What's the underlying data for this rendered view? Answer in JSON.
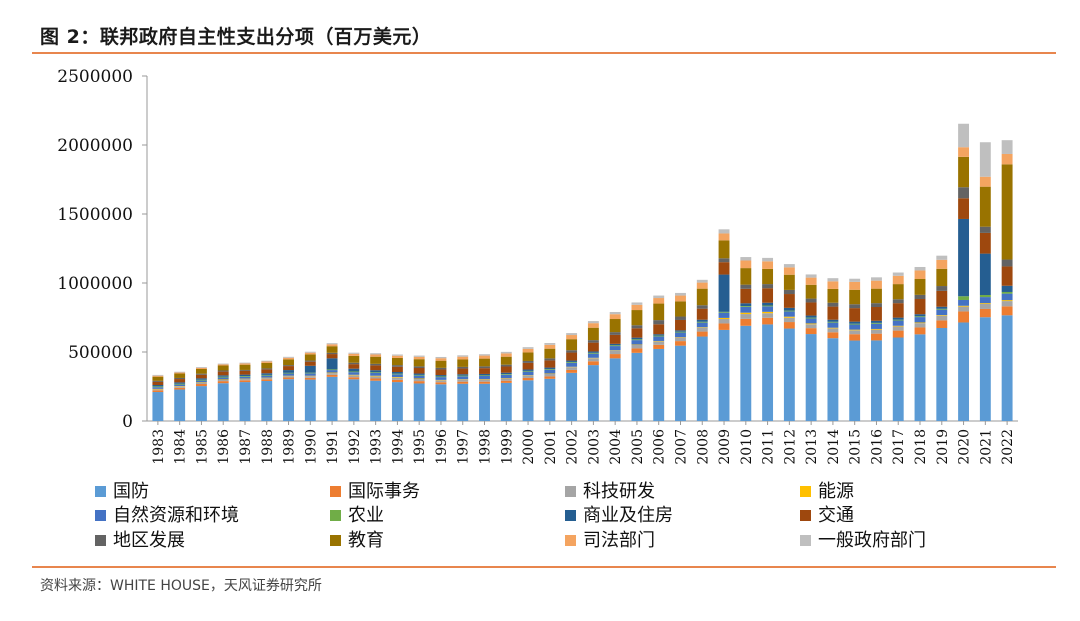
{
  "header": {
    "title": "图 2：联邦政府自主性支出分项（百万美元）"
  },
  "footer": {
    "source": "资料来源：WHITE HOUSE，天风证券研究所"
  },
  "colors": {
    "accent_rule": "#e8864e",
    "series": [
      "#5b9bd5",
      "#ed7d31",
      "#a5a5a5",
      "#ffc000",
      "#4472c4",
      "#70ad47",
      "#255e91",
      "#9e480e",
      "#636363",
      "#997300",
      "#f4a460",
      "#bfbfbf"
    ]
  },
  "chart_data": {
    "type": "bar",
    "stacked": true,
    "title": "联邦政府自主性支出分项（百万美元）",
    "xlabel": "",
    "ylabel": "",
    "ylim": [
      0,
      2500000
    ],
    "yticks": [
      "0",
      "500000",
      "1000000",
      "1500000",
      "2000000",
      "2500000"
    ],
    "ytick_values": [
      0,
      500000,
      1000000,
      1500000,
      2000000,
      2500000
    ],
    "categories": [
      "1983",
      "1984",
      "1985",
      "1986",
      "1987",
      "1988",
      "1989",
      "1990",
      "1991",
      "1992",
      "1993",
      "1994",
      "1995",
      "1996",
      "1997",
      "1998",
      "1999",
      "2000",
      "2001",
      "2002",
      "2003",
      "2004",
      "2005",
      "2006",
      "2007",
      "2008",
      "2009",
      "2010",
      "2011",
      "2012",
      "2013",
      "2014",
      "2015",
      "2016",
      "2017",
      "2018",
      "2019",
      "2020",
      "2021",
      "2022"
    ],
    "legend_position": "bottom",
    "series": [
      {
        "name": "国防",
        "values": [
          210000,
          228000,
          253000,
          274000,
          282000,
          290000,
          303000,
          300000,
          320000,
          302000,
          292000,
          282000,
          272000,
          266000,
          270000,
          270000,
          276000,
          295000,
          306000,
          349000,
          405000,
          454000,
          494000,
          522000,
          546000,
          612000,
          660000,
          690000,
          700000,
          670000,
          630000,
          600000,
          583000,
          584000,
          605000,
          628000,
          674000,
          714000,
          752000,
          766000
        ]
      },
      {
        "name": "国际事务",
        "values": [
          12000,
          13000,
          15000,
          15000,
          13000,
          12000,
          12000,
          13000,
          14000,
          15000,
          16000,
          16000,
          17000,
          15000,
          15000,
          15000,
          16000,
          17000,
          17000,
          21000,
          28000,
          31000,
          32000,
          30000,
          33000,
          36000,
          47000,
          50000,
          48000,
          47000,
          43000,
          43000,
          46000,
          49000,
          50000,
          50000,
          55000,
          80000,
          60000,
          65000
        ]
      },
      {
        "name": "科技研发",
        "values": [
          7000,
          7000,
          8000,
          8000,
          9000,
          9000,
          10000,
          12000,
          13000,
          14000,
          15000,
          15000,
          15000,
          14000,
          15000,
          16000,
          16000,
          17000,
          18000,
          20000,
          22000,
          24000,
          25000,
          25000,
          26000,
          27000,
          32000,
          35000,
          33000,
          31000,
          28000,
          28000,
          28000,
          29000,
          30000,
          31000,
          33000,
          35000,
          36000,
          38000
        ]
      },
      {
        "name": "能源",
        "values": [
          4000,
          4000,
          4000,
          4000,
          3000,
          3000,
          3000,
          3000,
          4000,
          4000,
          5000,
          5000,
          4000,
          3000,
          3000,
          3000,
          3000,
          3000,
          3000,
          3000,
          3000,
          3000,
          3000,
          3000,
          3000,
          4000,
          8000,
          10000,
          10000,
          8000,
          6000,
          5000,
          5000,
          5000,
          5000,
          5000,
          5000,
          6000,
          6000,
          7000
        ]
      },
      {
        "name": "自然资源和环境",
        "values": [
          12000,
          12000,
          13000,
          14000,
          14000,
          15000,
          16000,
          17000,
          18000,
          19000,
          20000,
          20000,
          21000,
          20000,
          21000,
          22000,
          24000,
          26000,
          28000,
          29000,
          30000,
          31000,
          32000,
          33000,
          33000,
          34000,
          38000,
          42000,
          40000,
          38000,
          36000,
          37000,
          37000,
          38000,
          38000,
          39000,
          40000,
          42000,
          44000,
          47000
        ]
      },
      {
        "name": "农业",
        "values": [
          6000,
          6000,
          6000,
          6000,
          5000,
          5000,
          5000,
          5000,
          5000,
          5000,
          5000,
          5000,
          5000,
          5000,
          5000,
          5000,
          5000,
          5000,
          5000,
          6000,
          6000,
          6000,
          6000,
          6000,
          6000,
          6000,
          6000,
          6000,
          6000,
          6000,
          6000,
          6000,
          6000,
          6000,
          6000,
          6000,
          6000,
          27000,
          15000,
          12000
        ]
      },
      {
        "name": "商业及住房",
        "values": [
          10000,
          10000,
          10000,
          10000,
          10000,
          12000,
          20000,
          50000,
          80000,
          20000,
          15000,
          12000,
          10000,
          10000,
          10000,
          10000,
          10000,
          10000,
          10000,
          10000,
          10000,
          10000,
          12000,
          10000,
          10000,
          15000,
          270000,
          20000,
          20000,
          20000,
          15000,
          15000,
          15000,
          15000,
          15000,
          15000,
          15000,
          560000,
          300000,
          45000
        ]
      },
      {
        "name": "交通",
        "values": [
          22000,
          24000,
          26000,
          27000,
          27000,
          28000,
          29000,
          30000,
          31000,
          33000,
          35000,
          38000,
          40000,
          40000,
          41000,
          42000,
          45000,
          48000,
          52000,
          58000,
          64000,
          65000,
          68000,
          72000,
          75000,
          80000,
          90000,
          105000,
          105000,
          100000,
          95000,
          95000,
          98000,
          100000,
          105000,
          110000,
          115000,
          150000,
          150000,
          140000
        ]
      },
      {
        "name": "地区发展",
        "values": [
          8000,
          8000,
          8000,
          8000,
          7000,
          7000,
          7000,
          8000,
          9000,
          10000,
          11000,
          12000,
          12000,
          12000,
          12000,
          13000,
          13000,
          14000,
          15000,
          17000,
          18000,
          20000,
          22000,
          30000,
          25000,
          25000,
          28000,
          30000,
          30000,
          30000,
          28000,
          28000,
          28000,
          28000,
          28000,
          30000,
          35000,
          80000,
          45000,
          50000
        ]
      },
      {
        "name": "教育",
        "values": [
          30000,
          32000,
          34000,
          36000,
          38000,
          40000,
          42000,
          45000,
          48000,
          50000,
          52000,
          52000,
          52000,
          52000,
          54000,
          56000,
          58000,
          62000,
          70000,
          80000,
          90000,
          95000,
          110000,
          120000,
          110000,
          120000,
          130000,
          120000,
          110000,
          110000,
          100000,
          100000,
          105000,
          105000,
          110000,
          115000,
          125000,
          220000,
          290000,
          690000
        ]
      },
      {
        "name": "司法部门",
        "values": [
          7000,
          7000,
          8000,
          8000,
          9000,
          10000,
          11000,
          12000,
          14000,
          15000,
          16000,
          16000,
          17000,
          18000,
          20000,
          22000,
          24000,
          26000,
          28000,
          30000,
          33000,
          35000,
          38000,
          40000,
          42000,
          44000,
          50000,
          55000,
          55000,
          53000,
          52000,
          55000,
          57000,
          58000,
          60000,
          62000,
          65000,
          70000,
          72000,
          75000
        ]
      },
      {
        "name": "一般政府部门",
        "values": [
          6000,
          6000,
          6000,
          6000,
          6000,
          6000,
          7000,
          7000,
          8000,
          8000,
          9000,
          9000,
          9000,
          9000,
          10000,
          10000,
          11000,
          12000,
          13000,
          14000,
          15000,
          16000,
          17000,
          18000,
          19000,
          20000,
          30000,
          25000,
          25000,
          24000,
          23000,
          23000,
          23000,
          24000,
          24000,
          25000,
          30000,
          170000,
          250000,
          100000
        ]
      }
    ]
  }
}
